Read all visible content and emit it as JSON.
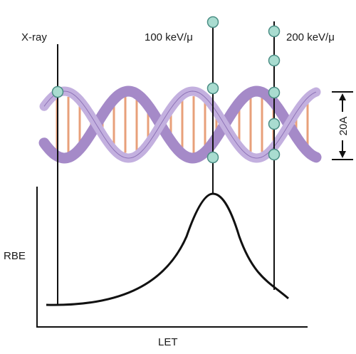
{
  "tracks": [
    {
      "label": "X-ray"
    },
    {
      "label": "100 keV/μ"
    },
    {
      "label": "200 keV/μ"
    }
  ],
  "scale_bar": {
    "label": "20A"
  },
  "axes": {
    "ylabel": "RBE",
    "xlabel": "LET"
  },
  "colors": {
    "strand": "#c3b0df",
    "strand_dark": "#a58ac8",
    "base_pairs": "#e8a07a",
    "ionization": "#a9dcd0",
    "curve": "#111111"
  }
}
